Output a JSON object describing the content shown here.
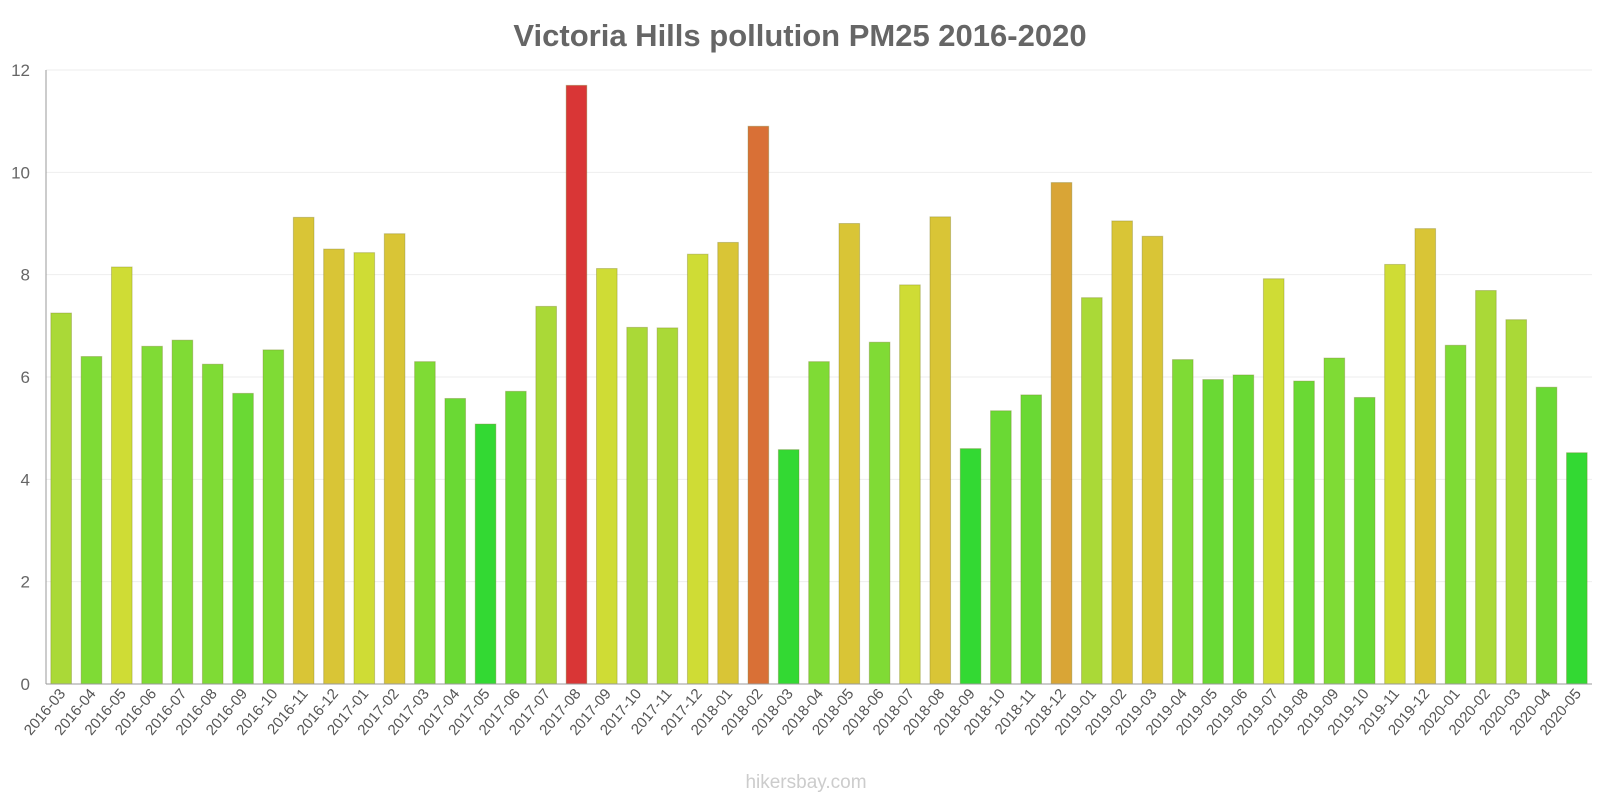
{
  "chart_data": {
    "type": "bar",
    "title": "Victoria Hills pollution PM25 2016-2020",
    "xlabel": "",
    "ylabel": "",
    "ylim": [
      0,
      12
    ],
    "yticks": [
      "0",
      "2",
      "4",
      "6",
      "8",
      "10",
      "12"
    ],
    "grid": true,
    "categories": [
      "2016-03",
      "2016-04",
      "2016-05",
      "2016-06",
      "2016-07",
      "2016-08",
      "2016-09",
      "2016-10",
      "2016-11",
      "2016-12",
      "2017-01",
      "2017-02",
      "2017-03",
      "2017-04",
      "2017-05",
      "2017-06",
      "2017-07",
      "2017-08",
      "2017-09",
      "2017-10",
      "2017-11",
      "2017-12",
      "2018-01",
      "2018-02",
      "2018-03",
      "2018-04",
      "2018-05",
      "2018-06",
      "2018-07",
      "2018-08",
      "2018-09",
      "2018-10",
      "2018-11",
      "2018-12",
      "2019-01",
      "2019-02",
      "2019-03",
      "2019-04",
      "2019-05",
      "2019-06",
      "2019-07",
      "2019-08",
      "2019-09",
      "2019-10",
      "2019-11",
      "2019-12",
      "2020-01",
      "2020-02",
      "2020-03",
      "2020-04",
      "2020-05"
    ],
    "values": [
      7.25,
      6.4,
      8.15,
      6.6,
      6.72,
      6.25,
      5.68,
      6.53,
      9.12,
      8.5,
      8.43,
      8.8,
      6.3,
      5.58,
      5.08,
      5.72,
      7.38,
      11.7,
      8.12,
      6.97,
      6.96,
      8.4,
      8.63,
      10.9,
      4.58,
      6.3,
      9.0,
      6.68,
      7.8,
      9.13,
      4.6,
      5.34,
      5.65,
      9.8,
      7.55,
      9.05,
      8.75,
      6.34,
      5.95,
      6.04,
      7.92,
      5.92,
      6.37,
      5.6,
      8.2,
      8.9,
      6.62,
      7.69,
      7.12,
      5.8,
      4.52
    ],
    "colors": [
      "#aad937",
      "#7fdb35",
      "#cfdc35",
      "#80db35",
      "#80db35",
      "#7fdb35",
      "#6ad934",
      "#7fdb35",
      "#d9c536",
      "#d9c536",
      "#cfdc35",
      "#d9c536",
      "#7fdb35",
      "#6ad934",
      "#33d933",
      "#6ad934",
      "#aad937",
      "#d93636",
      "#cfdc35",
      "#aad937",
      "#aad937",
      "#cfdc35",
      "#d9c536",
      "#d97036",
      "#33d933",
      "#7fdb35",
      "#d9c536",
      "#80db35",
      "#cfdc35",
      "#d9c536",
      "#33d933",
      "#6ad934",
      "#6ad934",
      "#d9a536",
      "#aad937",
      "#d9c536",
      "#d9c536",
      "#7fdb35",
      "#6ad934",
      "#6ad934",
      "#cfdc35",
      "#6ad934",
      "#7fdb35",
      "#6ad934",
      "#cfdc35",
      "#d9c536",
      "#7fdb35",
      "#aad937",
      "#aad937",
      "#6ad934",
      "#33d933"
    ]
  },
  "watermark": "hikersbay.com"
}
